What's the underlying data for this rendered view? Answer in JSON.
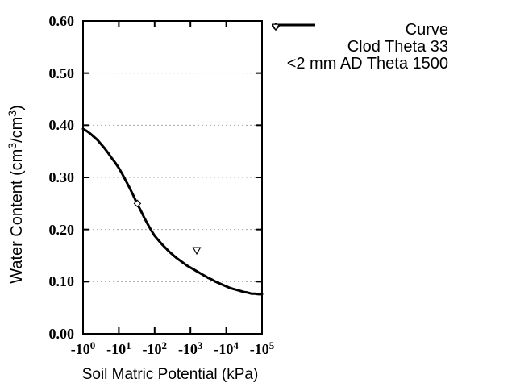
{
  "colors": {
    "background": "#ffffff",
    "axis": "#000000",
    "grid": "#a8a8a8",
    "curve": "#000000",
    "marker_fill": "#ffffff"
  },
  "y_axis": {
    "title_parts": {
      "pre": "Water Content (cm",
      "sup1": "3",
      "mid": "/cm",
      "sup2": "3",
      "post": ")"
    },
    "ticks": [
      {
        "label": "0.60",
        "value": 0.6
      },
      {
        "label": "0.50",
        "value": 0.5
      },
      {
        "label": "0.40",
        "value": 0.4
      },
      {
        "label": "0.30",
        "value": 0.3
      },
      {
        "label": "0.20",
        "value": 0.2
      },
      {
        "label": "0.10",
        "value": 0.1
      },
      {
        "label": "0.00",
        "value": 0.0
      }
    ]
  },
  "x_axis": {
    "title": "Soil Matric Potential (kPa)",
    "ticks": [
      {
        "base": "-10",
        "exp": "0",
        "value": 0
      },
      {
        "base": "-10",
        "exp": "1",
        "value": 1
      },
      {
        "base": "-10",
        "exp": "2",
        "value": 2
      },
      {
        "base": "-10",
        "exp": "3",
        "value": 3
      },
      {
        "base": "-10",
        "exp": "4",
        "value": 4
      },
      {
        "base": "-10",
        "exp": "5",
        "value": 5
      }
    ]
  },
  "legend": {
    "items": [
      {
        "label": "Curve",
        "sample": "line"
      },
      {
        "label": "Clod Theta 33",
        "sample": "open-diamond"
      },
      {
        "label": "<2 mm AD Theta 1500",
        "sample": "open-triangle-down"
      }
    ]
  },
  "chart_data": {
    "type": "line",
    "title": "",
    "xlabel": "Soil Matric Potential (kPa)",
    "ylabel": "Water Content (cm3/cm3)",
    "x_scale": "log10 of negative matric potential in kPa",
    "x_tick_labels": [
      "-10^0",
      "-10^1",
      "-10^2",
      "-10^3",
      "-10^4",
      "-10^5"
    ],
    "x_ticks_log10": [
      0,
      1,
      2,
      3,
      4,
      5
    ],
    "xlim_log10": [
      0,
      5
    ],
    "ylim": [
      0.0,
      0.6
    ],
    "y_ticks": [
      0.0,
      0.1,
      0.2,
      0.3,
      0.4,
      0.5,
      0.6
    ],
    "grid": "horizontal dotted gridlines at 0.10 through 0.50",
    "legend_position": "outside top-right",
    "series": [
      {
        "name": "Curve",
        "type": "line",
        "points_log10_theta": [
          [
            0.0,
            0.393
          ],
          [
            0.1,
            0.389
          ],
          [
            0.2,
            0.384
          ],
          [
            0.3,
            0.378
          ],
          [
            0.4,
            0.372
          ],
          [
            0.5,
            0.364
          ],
          [
            0.6,
            0.356
          ],
          [
            0.7,
            0.347
          ],
          [
            0.8,
            0.337
          ],
          [
            0.9,
            0.328
          ],
          [
            1.0,
            0.318
          ],
          [
            1.1,
            0.306
          ],
          [
            1.2,
            0.293
          ],
          [
            1.3,
            0.28
          ],
          [
            1.4,
            0.266
          ],
          [
            1.5,
            0.251
          ],
          [
            1.6,
            0.238
          ],
          [
            1.7,
            0.224
          ],
          [
            1.8,
            0.211
          ],
          [
            1.9,
            0.199
          ],
          [
            2.0,
            0.188
          ],
          [
            2.1,
            0.18
          ],
          [
            2.2,
            0.172
          ],
          [
            2.3,
            0.165
          ],
          [
            2.4,
            0.158
          ],
          [
            2.5,
            0.152
          ],
          [
            2.6,
            0.146
          ],
          [
            2.7,
            0.141
          ],
          [
            2.8,
            0.136
          ],
          [
            2.9,
            0.131
          ],
          [
            3.0,
            0.127
          ],
          [
            3.1,
            0.123
          ],
          [
            3.2,
            0.119
          ],
          [
            3.3,
            0.115
          ],
          [
            3.4,
            0.111
          ],
          [
            3.5,
            0.107
          ],
          [
            3.6,
            0.104
          ],
          [
            3.7,
            0.1
          ],
          [
            3.8,
            0.097
          ],
          [
            3.9,
            0.094
          ],
          [
            4.0,
            0.091
          ],
          [
            4.1,
            0.088
          ],
          [
            4.2,
            0.086
          ],
          [
            4.3,
            0.084
          ],
          [
            4.4,
            0.082
          ],
          [
            4.5,
            0.08
          ],
          [
            4.6,
            0.079
          ],
          [
            4.7,
            0.077
          ],
          [
            4.8,
            0.077
          ],
          [
            4.9,
            0.076
          ],
          [
            5.0,
            0.076
          ]
        ]
      },
      {
        "name": "Clod Theta 33",
        "type": "scatter",
        "marker": "open-diamond",
        "points_kPa_theta": [
          [
            -33,
            0.25
          ]
        ]
      },
      {
        "name": "<2 mm AD Theta 1500",
        "type": "scatter",
        "marker": "open-triangle-down",
        "points_kPa_theta": [
          [
            -1500,
            0.16
          ]
        ]
      }
    ]
  }
}
